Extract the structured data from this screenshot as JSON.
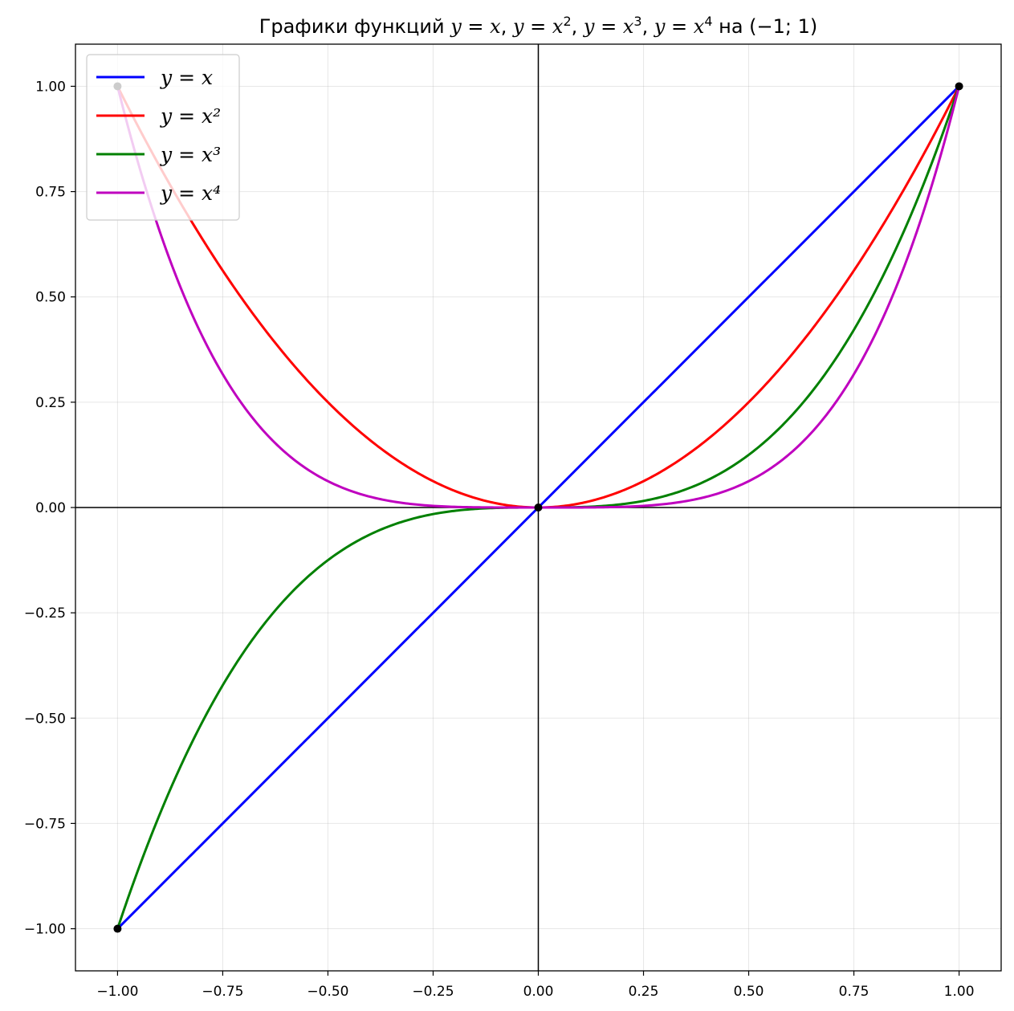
{
  "chart_data": {
    "type": "line",
    "title_parts": [
      {
        "t": "Графики функций ",
        "i": false
      },
      {
        "t": "y",
        "i": true
      },
      {
        "t": " = ",
        "i": false
      },
      {
        "t": "x",
        "i": true
      },
      {
        "t": ", ",
        "i": false
      },
      {
        "t": "y",
        "i": true
      },
      {
        "t": " = ",
        "i": false
      },
      {
        "t": "x",
        "i": true
      },
      {
        "t": "2",
        "i": false,
        "sup": true
      },
      {
        "t": ", ",
        "i": false
      },
      {
        "t": "y",
        "i": true
      },
      {
        "t": " = ",
        "i": false
      },
      {
        "t": "x",
        "i": true
      },
      {
        "t": "3",
        "i": false,
        "sup": true
      },
      {
        "t": ", ",
        "i": false
      },
      {
        "t": "y",
        "i": true
      },
      {
        "t": " = ",
        "i": false
      },
      {
        "t": "x",
        "i": true
      },
      {
        "t": "4",
        "i": false,
        "sup": true
      },
      {
        "t": " на (−1; 1)",
        "i": false
      }
    ],
    "xlim": [
      -1.1,
      1.1
    ],
    "ylim": [
      -1.1,
      1.1
    ],
    "x_ticks": [
      -1.0,
      -0.75,
      -0.5,
      -0.25,
      0.0,
      0.25,
      0.5,
      0.75,
      1.0
    ],
    "x_tick_labels": [
      "−1.00",
      "−0.75",
      "−0.50",
      "−0.25",
      "0.00",
      "0.25",
      "0.50",
      "0.75",
      "1.00"
    ],
    "y_ticks": [
      1.0,
      0.75,
      0.5,
      0.25,
      0.0,
      -0.25,
      -0.5,
      -0.75,
      -1.0
    ],
    "y_tick_labels": [
      "1.00",
      "0.75",
      "0.50",
      "0.25",
      "0.00",
      "−0.25",
      "−0.50",
      "−0.75",
      "−1.00"
    ],
    "grid": true,
    "legend_position": "top-left",
    "series": [
      {
        "label": "y = x",
        "power": 1,
        "color": "#0000ff"
      },
      {
        "label": "y = x²",
        "power": 2,
        "color": "#ff0000"
      },
      {
        "label": "y = x³",
        "power": 3,
        "color": "#008000"
      },
      {
        "label": "y = x⁴",
        "power": 4,
        "color": "#bf00bf"
      }
    ],
    "points": [
      {
        "x": -1,
        "y": 1
      },
      {
        "x": -1,
        "y": -1
      },
      {
        "x": 0,
        "y": 0
      },
      {
        "x": 1,
        "y": 1
      }
    ],
    "point_color": "#000000",
    "axis_line_color": "#000000"
  }
}
